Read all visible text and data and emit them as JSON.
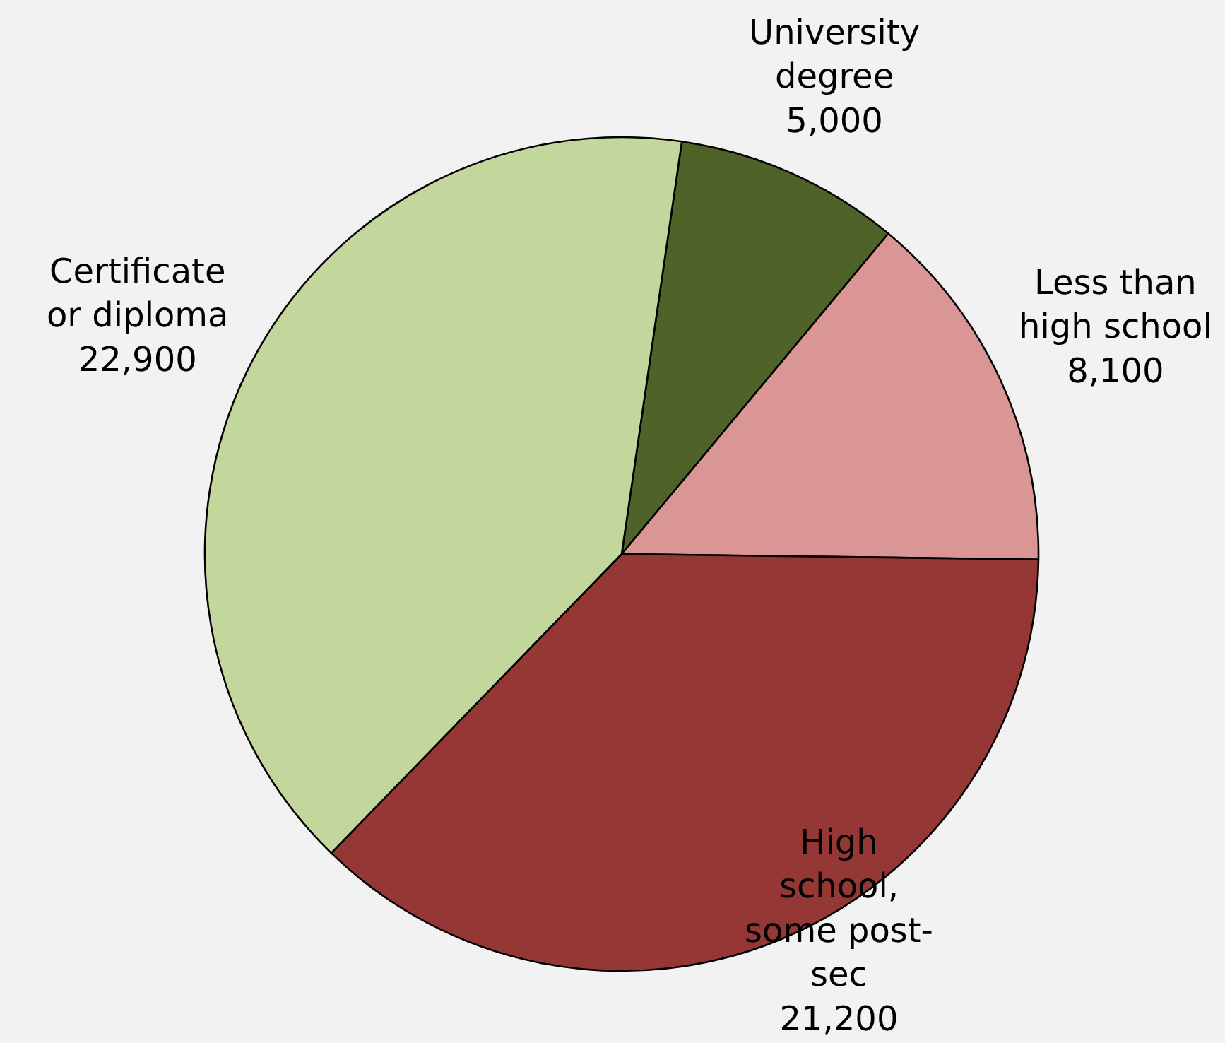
{
  "chart_data": {
    "type": "pie",
    "categories": [
      "University degree",
      "Less than high school",
      "High school, some post-sec",
      "Certificate or diploma"
    ],
    "values": [
      5000,
      8100,
      21200,
      22900
    ],
    "value_labels": [
      "5,000",
      "8,100",
      "21,200",
      "22,900"
    ],
    "colors": [
      "#4f6228",
      "#d99694",
      "#953735",
      "#c3d69b"
    ]
  }
}
